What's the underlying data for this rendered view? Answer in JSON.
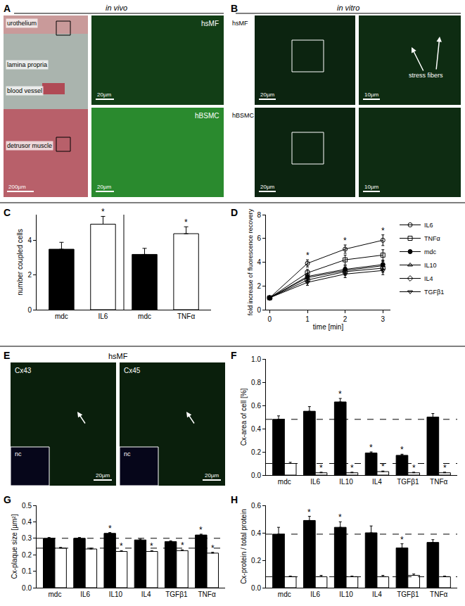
{
  "image_panels": [
    {
      "panel": "A",
      "title": "in vivo",
      "labels": [
        "urothelium",
        "lamina propria",
        "blood vessel",
        "detrusor muscle"
      ],
      "scale_bar": "200µm",
      "insets": [
        {
          "label": "hsMF",
          "scale_bar": "20µm"
        },
        {
          "label": "hBSMC",
          "scale_bar": "20µm"
        }
      ]
    },
    {
      "panel": "B",
      "title": "in vitro",
      "rows": [
        {
          "label": "hsMF",
          "scale_bar": "20µm",
          "zoom_scale_bar": "10µm",
          "annotation": "stress fibers"
        },
        {
          "label": "hBSMC",
          "scale_bar": "20µm",
          "zoom_scale_bar": "10µm"
        }
      ]
    },
    {
      "panel": "E",
      "title": "hsMF",
      "images": [
        {
          "label": "Cx43",
          "scale_bar": "20µm",
          "inset": "nc"
        },
        {
          "label": "Cx45",
          "scale_bar": "20µm",
          "inset": "nc"
        }
      ]
    }
  ],
  "chart_data": [
    {
      "panel": "C",
      "type": "bar",
      "y_label": "number coupled cells",
      "categories": [
        "mdc",
        "IL6",
        "mdc",
        "TNFα"
      ],
      "values": [
        3.5,
        4.95,
        3.2,
        4.4
      ],
      "errors": [
        0.4,
        0.45,
        0.35,
        0.4
      ],
      "colors": [
        "#000000",
        "#ffffff",
        "#000000",
        "#ffffff"
      ],
      "significant": [
        false,
        true,
        false,
        true
      ],
      "significance_label": "*",
      "ylim": [
        0,
        5.5
      ],
      "yticks": [
        0,
        2,
        4
      ],
      "grid": false
    },
    {
      "panel": "D",
      "type": "line",
      "x_label": "time [min]",
      "y_label": "fold increase of fluorescence recovery",
      "x": [
        0,
        1,
        2,
        3
      ],
      "xlim": [
        -0.1,
        3.2
      ],
      "xticks": [
        0,
        1,
        2,
        3
      ],
      "ylim": [
        0,
        8
      ],
      "yticks": [
        0,
        2,
        4,
        6,
        8
      ],
      "grid": false,
      "legend": "right",
      "significance_label": "*",
      "series": [
        {
          "name": "IL6",
          "color": "#000000",
          "marker": "circle-open",
          "values": [
            1,
            3.9,
            5.1,
            5.85
          ],
          "errors": [
            0,
            0.3,
            0.35,
            0.45
          ],
          "significant": [
            false,
            true,
            true,
            true
          ]
        },
        {
          "name": "TNFα",
          "color": "#000000",
          "marker": "square-open",
          "values": [
            1,
            3.1,
            4.2,
            4.6
          ],
          "errors": [
            0,
            0.3,
            0.4,
            0.45
          ]
        },
        {
          "name": "mdc",
          "color": "#000000",
          "marker": "circle",
          "values": [
            1,
            2.8,
            3.4,
            3.8
          ],
          "errors": [
            0,
            0.25,
            0.3,
            0.35
          ]
        },
        {
          "name": "IL10",
          "color": "#000000",
          "marker": "triangle-up-open",
          "values": [
            1,
            2.7,
            3.3,
            3.7
          ],
          "errors": [
            0,
            0.25,
            0.3,
            0.35
          ]
        },
        {
          "name": "IL4",
          "color": "#000000",
          "marker": "diamond-open",
          "values": [
            1,
            2.5,
            3.2,
            3.5
          ],
          "errors": [
            0,
            0.25,
            0.3,
            0.35
          ]
        },
        {
          "name": "TGFβ1",
          "color": "#000000",
          "marker": "triangle-down-open",
          "values": [
            1,
            2.3,
            3.0,
            3.3
          ],
          "errors": [
            0,
            0.25,
            0.3,
            0.35
          ]
        }
      ]
    },
    {
      "panel": "F",
      "type": "bar",
      "y_label": "Cx-area of cell [%]",
      "categories": [
        "mdc",
        "IL6",
        "IL10",
        "IL4",
        "TGFβ1",
        "TNFα"
      ],
      "ylim": [
        0,
        1
      ],
      "yticks": [
        {
          "value": 0,
          "label": "0.0"
        },
        0.2,
        0.4,
        0.6,
        0.8,
        {
          "value": 1,
          "label": "1.0"
        }
      ],
      "grid": false,
      "significance_label": "*",
      "series": [
        {
          "color": "#000000",
          "values": [
            0.48,
            0.55,
            0.63,
            0.19,
            0.17,
            0.5
          ],
          "errors": [
            0.03,
            0.04,
            0.03,
            0.01,
            0.01,
            0.03
          ],
          "significant": [
            false,
            false,
            true,
            true,
            true,
            false
          ]
        },
        {
          "color": "#ffffff",
          "values": [
            0.1,
            0.02,
            0.02,
            0.03,
            0.02,
            0.02
          ],
          "errors": [
            0.01,
            0.005,
            0.005,
            0.005,
            0.005,
            0.005
          ],
          "significant": [
            false,
            true,
            true,
            true,
            true,
            true
          ]
        }
      ]
    },
    {
      "panel": "G",
      "type": "bar",
      "y_label": "Cx-plaque size [µm²]",
      "categories": [
        "mdc",
        "IL6",
        "IL10",
        "IL4",
        "TGFβ1",
        "TNFα"
      ],
      "ylim": [
        0,
        0.5
      ],
      "yticks": [
        {
          "value": 0,
          "label": "0.0"
        },
        0.1,
        0.2,
        0.3,
        0.4,
        0.5
      ],
      "grid": false,
      "significance_label": "*",
      "series": [
        {
          "color": "#000000",
          "values": [
            0.3,
            0.3,
            0.33,
            0.29,
            0.28,
            0.32
          ],
          "errors": [
            0.005,
            0.005,
            0.005,
            0.005,
            0.005,
            0.005
          ],
          "significant": [
            false,
            false,
            true,
            false,
            false,
            true
          ]
        },
        {
          "color": "#ffffff",
          "values": [
            0.24,
            0.235,
            0.22,
            0.22,
            0.225,
            0.21
          ],
          "errors": [
            0.005,
            0.005,
            0.005,
            0.005,
            0.005,
            0.005
          ],
          "significant": [
            false,
            false,
            true,
            true,
            true,
            true
          ]
        }
      ]
    },
    {
      "panel": "H",
      "type": "bar",
      "y_label": "Cx-protein / total protein",
      "categories": [
        "mdc",
        "IL6",
        "IL10",
        "IL4",
        "TGFβ1",
        "TNFα"
      ],
      "ylim": [
        0,
        0.6
      ],
      "yticks": [
        {
          "value": 0,
          "label": "0.0"
        },
        0.2,
        0.4,
        0.6
      ],
      "grid": false,
      "significance_label": "*",
      "series": [
        {
          "color": "#000000",
          "values": [
            0.39,
            0.49,
            0.44,
            0.4,
            0.29,
            0.33
          ],
          "errors": [
            0.05,
            0.03,
            0.04,
            0.05,
            0.03,
            0.02
          ],
          "significant": [
            false,
            true,
            true,
            false,
            true,
            false
          ]
        },
        {
          "color": "#ffffff",
          "values": [
            0.08,
            0.08,
            0.08,
            0.08,
            0.09,
            0.08
          ],
          "errors": [
            0.005,
            0.01,
            0.005,
            0.01,
            0.01,
            0.005
          ],
          "significant": [
            false,
            false,
            false,
            false,
            false,
            false
          ]
        }
      ]
    }
  ]
}
